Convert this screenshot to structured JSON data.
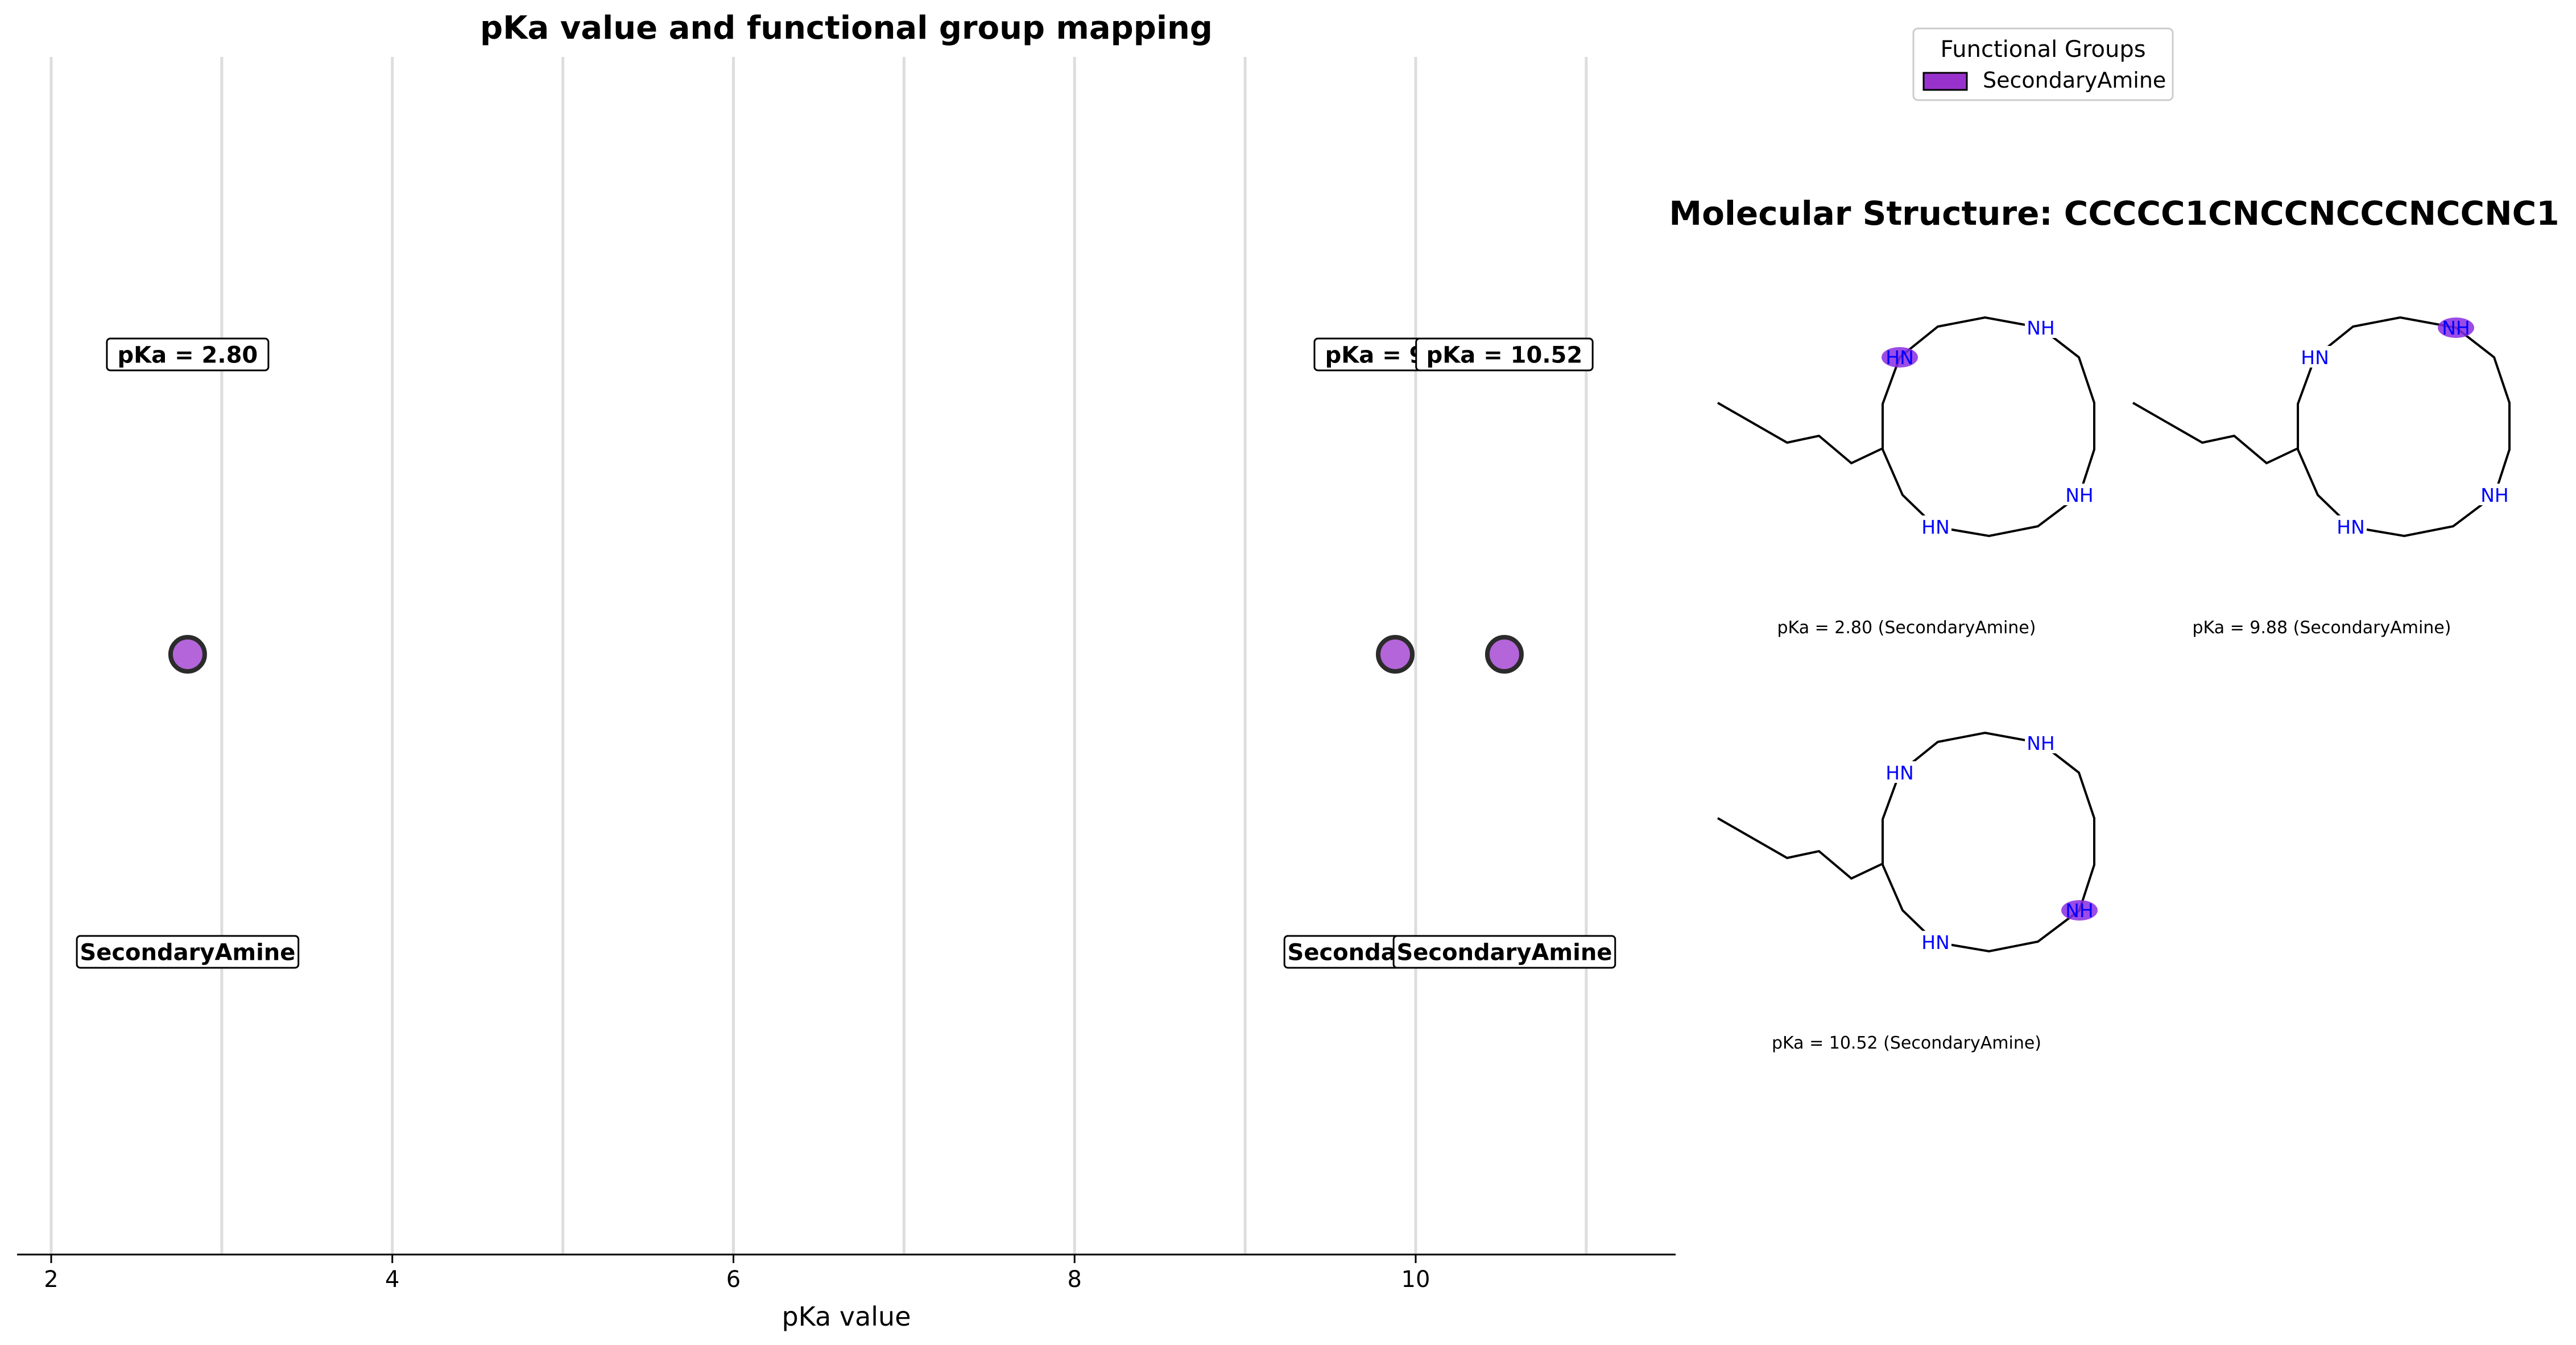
{
  "chart_data": {
    "type": "scatter",
    "title": "pKa value and functional group mapping",
    "xlabel": "pKa value",
    "ylabel": "",
    "xlim": [
      1.8,
      11.5
    ],
    "xticks": [
      2,
      4,
      6,
      8,
      10
    ],
    "grid": "vertical lines at every integer from 2 to 11",
    "points": [
      {
        "x": 2.8,
        "label": "pKa = 2.80",
        "group": "SecondaryAmine"
      },
      {
        "x": 9.88,
        "label": "pKa = 9.88",
        "group": "SecondaryAmine"
      },
      {
        "x": 10.52,
        "label": "pKa = 10.52",
        "group": "SecondaryAmine"
      }
    ],
    "legend": {
      "title": "Functional Groups",
      "placement": "top-right",
      "entries": [
        {
          "name": "SecondaryAmine",
          "color": "#9932CC"
        }
      ]
    },
    "colors": {
      "marker": "#9932CC",
      "highlight": "#8A2BE2",
      "atom_n": "#0000FF",
      "bond": "#000000"
    }
  },
  "structure_panel": {
    "title": "Molecular Structure: CCCCC1CNCCNCCCNCCNC1",
    "molecules": [
      {
        "caption": "pKa = 2.80 (SecondaryAmine)",
        "highlight_atom": 0
      },
      {
        "caption": "pKa = 9.88 (SecondaryAmine)",
        "highlight_atom": 1
      },
      {
        "caption": "pKa = 10.52 (SecondaryAmine)",
        "highlight_atom": 2
      }
    ],
    "atom_labels": [
      "HN",
      "NH",
      "NH",
      "HN"
    ]
  }
}
